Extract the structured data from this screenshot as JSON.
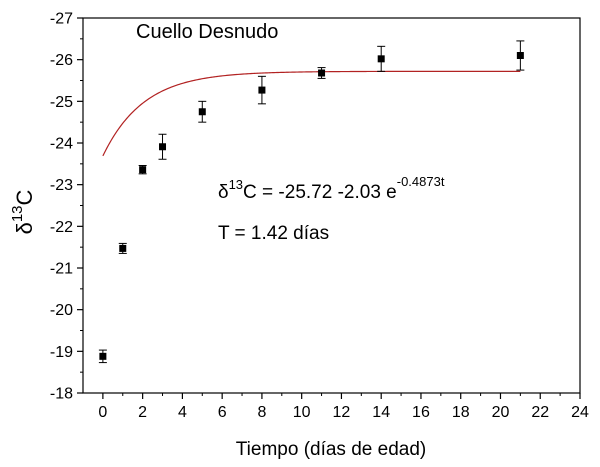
{
  "chart_data": {
    "type": "scatter",
    "title": "Cuello Desnudo",
    "xlabel": "Tiempo (días de edad)",
    "ylabel": {
      "base": "δ",
      "sup": "13",
      "tail": "C"
    },
    "xlim": [
      -1,
      24
    ],
    "ylim": [
      -18,
      -27
    ],
    "y_axis_direction": "inverted (less negative at top)",
    "x_ticks": [
      0,
      2,
      4,
      6,
      8,
      10,
      12,
      14,
      16,
      18,
      20,
      22,
      24
    ],
    "y_ticks": [
      -18,
      -19,
      -20,
      -21,
      -22,
      -23,
      -24,
      -25,
      -26,
      -27
    ],
    "grid": false,
    "series": [
      {
        "marker": "square",
        "color": "#000000",
        "x": [
          0,
          1,
          2,
          3,
          5,
          8,
          11,
          14,
          21
        ],
        "y": [
          -18.88,
          -21.47,
          -23.36,
          -23.91,
          -24.75,
          -25.27,
          -25.68,
          -26.02,
          -26.1
        ],
        "err": [
          0.15,
          0.12,
          0.1,
          0.3,
          0.25,
          0.33,
          0.13,
          0.3,
          0.35
        ]
      }
    ],
    "fit_curve": {
      "color": "#b22222",
      "a": -25.72,
      "b": 2.03,
      "k": 0.4873
    },
    "annotations": {
      "equation": {
        "pre": "δ",
        "sup1": "13",
        "mid": "C = -25.72 -2.03 e",
        "sup2": "-0.4873t"
      },
      "half_life": "T = 1.42 días"
    }
  }
}
